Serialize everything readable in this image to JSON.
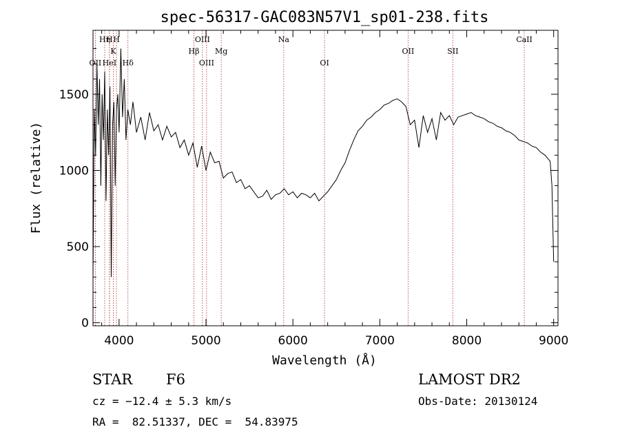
{
  "chart_data": {
    "type": "line",
    "title": "spec-56317-GAC083N57V1_sp01-238.fits",
    "xlabel": "Wavelength (Å)",
    "ylabel": "Flux (relative)",
    "xlim": [
      3700,
      9050
    ],
    "ylim": [
      -20,
      1920
    ],
    "xticks": [
      4000,
      5000,
      6000,
      7000,
      8000,
      9000
    ],
    "yticks": [
      0,
      500,
      1000,
      1500
    ],
    "grid": false,
    "colors": {
      "line": "#000000",
      "marker": "#b22222",
      "axes": "#000000"
    },
    "series": [
      {
        "x": [
          3700,
          3715,
          3730,
          3745,
          3760,
          3775,
          3790,
          3805,
          3820,
          3835,
          3850,
          3865,
          3880,
          3895,
          3910,
          3925,
          3940,
          3955,
          3970,
          3985,
          4000,
          4020,
          4040,
          4060,
          4080,
          4100,
          4130,
          4160,
          4200,
          4250,
          4300,
          4350,
          4400,
          4450,
          4500,
          4550,
          4600,
          4650,
          4700,
          4750,
          4800,
          4850,
          4900,
          4950,
          5000,
          5050,
          5100,
          5150,
          5200,
          5250,
          5300,
          5350,
          5400,
          5450,
          5500,
          5550,
          5600,
          5650,
          5700,
          5750,
          5800,
          5850,
          5900,
          5950,
          6000,
          6050,
          6100,
          6150,
          6200,
          6250,
          6300,
          6350,
          6400,
          6450,
          6500,
          6550,
          6600,
          6650,
          6700,
          6750,
          6800,
          6850,
          6900,
          6950,
          7000,
          7050,
          7100,
          7150,
          7200,
          7250,
          7300,
          7350,
          7400,
          7450,
          7500,
          7550,
          7600,
          7650,
          7700,
          7750,
          7800,
          7850,
          7900,
          7950,
          8000,
          8050,
          8100,
          8150,
          8200,
          8250,
          8300,
          8350,
          8400,
          8450,
          8500,
          8550,
          8600,
          8650,
          8700,
          8750,
          8800,
          8850,
          8900,
          8930,
          8960,
          8980,
          9000
        ],
        "y": [
          300,
          1400,
          1100,
          1700,
          1300,
          1600,
          900,
          1500,
          1200,
          1650,
          800,
          1400,
          1100,
          1550,
          300,
          1300,
          1450,
          900,
          1400,
          1500,
          1250,
          1800,
          1350,
          1600,
          1200,
          1400,
          1300,
          1450,
          1250,
          1350,
          1200,
          1380,
          1260,
          1300,
          1200,
          1290,
          1220,
          1250,
          1150,
          1200,
          1100,
          1180,
          1020,
          1160,
          1000,
          1120,
          1050,
          1060,
          950,
          980,
          990,
          920,
          940,
          880,
          900,
          860,
          820,
          830,
          870,
          810,
          840,
          850,
          880,
          840,
          860,
          820,
          850,
          840,
          820,
          850,
          800,
          830,
          860,
          900,
          940,
          1000,
          1050,
          1130,
          1200,
          1260,
          1290,
          1330,
          1350,
          1380,
          1400,
          1430,
          1440,
          1460,
          1470,
          1450,
          1420,
          1300,
          1330,
          1150,
          1360,
          1250,
          1340,
          1200,
          1380,
          1330,
          1360,
          1300,
          1350,
          1360,
          1370,
          1380,
          1360,
          1350,
          1340,
          1320,
          1310,
          1290,
          1280,
          1260,
          1250,
          1230,
          1200,
          1190,
          1180,
          1160,
          1150,
          1120,
          1100,
          1080,
          1060,
          900,
          400
        ]
      }
    ],
    "line_markers": [
      {
        "label": "OII",
        "wavelength": 3727,
        "level": 3
      },
      {
        "label": "Hη",
        "wavelength": 3835,
        "level": 1
      },
      {
        "label": "H",
        "wavelength": 3889,
        "level": 1
      },
      {
        "label": "HeI",
        "wavelength": 3889,
        "level": 3
      },
      {
        "label": "K",
        "wavelength": 3934,
        "level": 2
      },
      {
        "label": "H",
        "wavelength": 3970,
        "level": 1
      },
      {
        "label": "Hδ",
        "wavelength": 4102,
        "level": 3
      },
      {
        "label": "Hβ",
        "wavelength": 4861,
        "level": 2
      },
      {
        "label": "OIII",
        "wavelength": 4959,
        "level": 1
      },
      {
        "label": "OIII",
        "wavelength": 5007,
        "level": 3
      },
      {
        "label": "Mg",
        "wavelength": 5175,
        "level": 2
      },
      {
        "label": "Na",
        "wavelength": 5894,
        "level": 1
      },
      {
        "label": "OI",
        "wavelength": 6364,
        "level": 3
      },
      {
        "label": "OII",
        "wavelength": 7325,
        "level": 2
      },
      {
        "label": "SII",
        "wavelength": 7840,
        "level": 2
      },
      {
        "label": "CaII",
        "wavelength": 8662,
        "level": 1
      }
    ]
  },
  "info": {
    "object_type": "STAR",
    "subclass": "F6",
    "survey": "LAMOST DR2",
    "redshift": "cz = −12.4 ± 5.3 km/s",
    "obs_date": "Obs-Date: 20130124",
    "coords": "RA =  82.51337, DEC =  54.83975"
  }
}
